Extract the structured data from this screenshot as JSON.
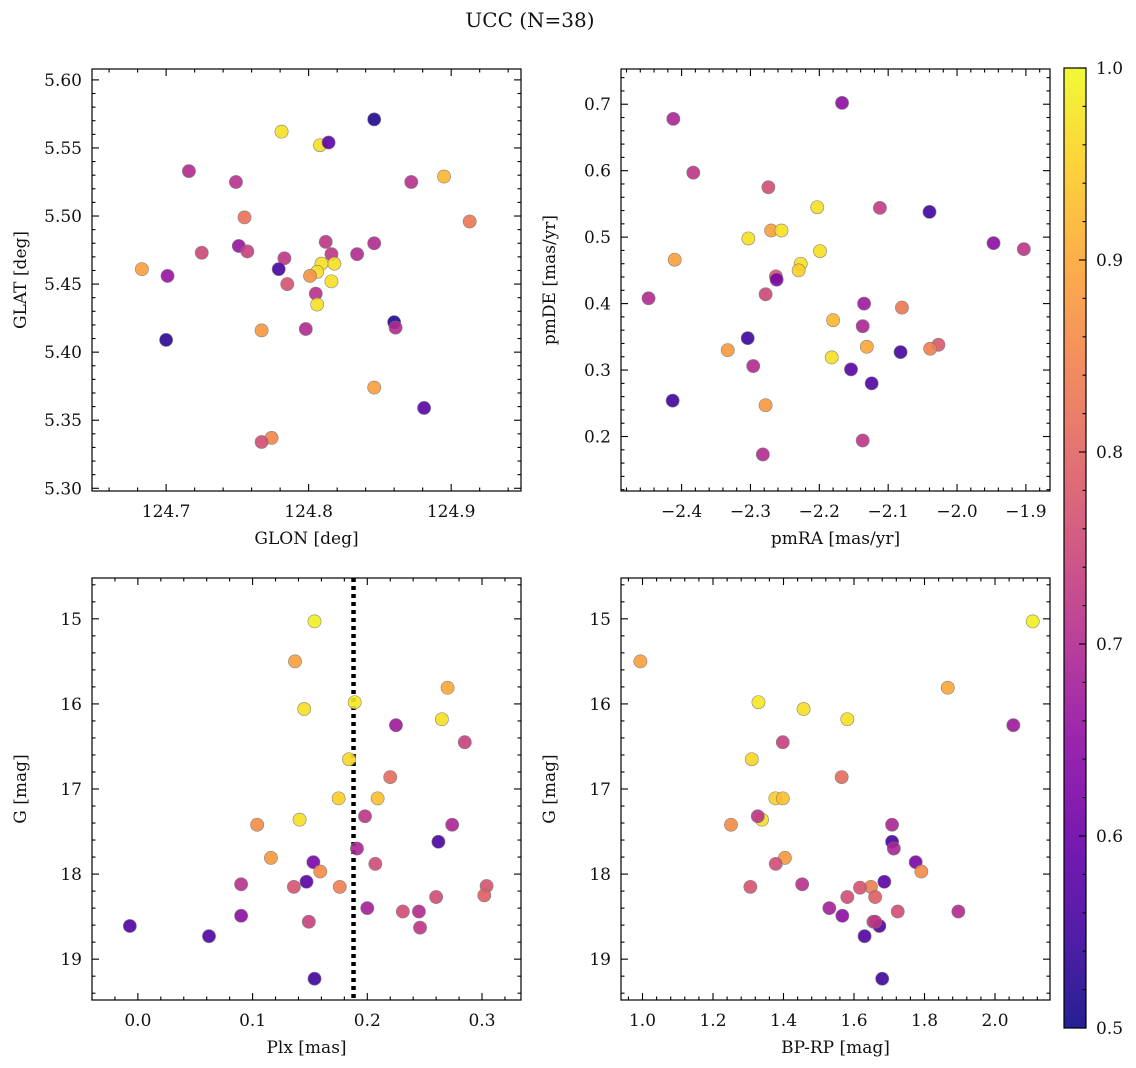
{
  "figure": {
    "title": "UCC (N=38)"
  },
  "colorbar": {
    "range": [
      0.5,
      1.0
    ],
    "tick_values": [
      0.5,
      0.6,
      0.7,
      0.8,
      0.9,
      1.0
    ],
    "tick_labels": [
      "0.5",
      "0.6",
      "0.7",
      "0.8",
      "0.9",
      "1.0"
    ],
    "colormap": "plasma"
  },
  "chart_data": [
    {
      "type": "scatter",
      "xlabel": "GLON [deg]",
      "ylabel": "GLAT [deg]",
      "xlim": [
        124.648,
        124.949
      ],
      "ylim": [
        5.298,
        5.608
      ],
      "x_ticks": [
        124.7,
        124.8,
        124.9
      ],
      "x_tick_labels": [
        "124.7",
        "124.8",
        "124.9"
      ],
      "y_ticks": [
        5.3,
        5.35,
        5.4,
        5.45,
        5.5,
        5.55,
        5.6
      ],
      "y_tick_labels": [
        "5.30",
        "5.35",
        "5.40",
        "5.45",
        "5.50",
        "5.55",
        "5.60"
      ],
      "y_inverted": false,
      "points": [
        {
          "x": 124.781,
          "y": 5.562,
          "c": 0.97
        },
        {
          "x": 124.846,
          "y": 5.571,
          "c": 0.52
        },
        {
          "x": 124.808,
          "y": 5.552,
          "c": 0.97
        },
        {
          "x": 124.814,
          "y": 5.554,
          "c": 0.58
        },
        {
          "x": 124.716,
          "y": 5.533,
          "c": 0.7
        },
        {
          "x": 124.749,
          "y": 5.525,
          "c": 0.71
        },
        {
          "x": 124.872,
          "y": 5.525,
          "c": 0.71
        },
        {
          "x": 124.895,
          "y": 5.529,
          "c": 0.92
        },
        {
          "x": 124.755,
          "y": 5.499,
          "c": 0.82
        },
        {
          "x": 124.913,
          "y": 5.496,
          "c": 0.83
        },
        {
          "x": 124.751,
          "y": 5.478,
          "c": 0.66
        },
        {
          "x": 124.757,
          "y": 5.474,
          "c": 0.74
        },
        {
          "x": 124.725,
          "y": 5.473,
          "c": 0.75
        },
        {
          "x": 124.783,
          "y": 5.469,
          "c": 0.72
        },
        {
          "x": 124.812,
          "y": 5.481,
          "c": 0.72
        },
        {
          "x": 124.816,
          "y": 5.472,
          "c": 0.72
        },
        {
          "x": 124.834,
          "y": 5.472,
          "c": 0.7
        },
        {
          "x": 124.846,
          "y": 5.48,
          "c": 0.7
        },
        {
          "x": 124.818,
          "y": 5.465,
          "c": 0.97
        },
        {
          "x": 124.809,
          "y": 5.465,
          "c": 0.97
        },
        {
          "x": 124.806,
          "y": 5.459,
          "c": 0.97
        },
        {
          "x": 124.801,
          "y": 5.456,
          "c": 0.87
        },
        {
          "x": 124.816,
          "y": 5.452,
          "c": 0.97
        },
        {
          "x": 124.683,
          "y": 5.461,
          "c": 0.89
        },
        {
          "x": 124.701,
          "y": 5.456,
          "c": 0.66
        },
        {
          "x": 124.779,
          "y": 5.461,
          "c": 0.56
        },
        {
          "x": 124.785,
          "y": 5.45,
          "c": 0.77
        },
        {
          "x": 124.805,
          "y": 5.443,
          "c": 0.71
        },
        {
          "x": 124.806,
          "y": 5.435,
          "c": 0.97
        },
        {
          "x": 124.86,
          "y": 5.422,
          "c": 0.52
        },
        {
          "x": 124.861,
          "y": 5.418,
          "c": 0.7
        },
        {
          "x": 124.767,
          "y": 5.416,
          "c": 0.88
        },
        {
          "x": 124.798,
          "y": 5.417,
          "c": 0.7
        },
        {
          "x": 124.7,
          "y": 5.409,
          "c": 0.53
        },
        {
          "x": 124.846,
          "y": 5.374,
          "c": 0.89
        },
        {
          "x": 124.881,
          "y": 5.359,
          "c": 0.58
        },
        {
          "x": 124.774,
          "y": 5.337,
          "c": 0.85
        },
        {
          "x": 124.767,
          "y": 5.334,
          "c": 0.76
        }
      ]
    },
    {
      "type": "scatter",
      "xlabel": "pmRA [mas/yr]",
      "ylabel": "pmDE [mas/yr]",
      "xlim": [
        -2.488,
        -1.865
      ],
      "ylim": [
        0.118,
        0.753
      ],
      "x_ticks": [
        -2.4,
        -2.3,
        -2.2,
        -2.1,
        -2.0,
        -1.9
      ],
      "x_tick_labels": [
        "−2.4",
        "−2.3",
        "−2.2",
        "−2.1",
        "−2.0",
        "−1.9"
      ],
      "y_ticks": [
        0.2,
        0.3,
        0.4,
        0.5,
        0.6,
        0.7
      ],
      "y_tick_labels": [
        "0.2",
        "0.3",
        "0.4",
        "0.5",
        "0.6",
        "0.7"
      ],
      "y_inverted": false,
      "points": [
        {
          "x": -2.167,
          "y": 0.702,
          "c": 0.65
        },
        {
          "x": -2.412,
          "y": 0.678,
          "c": 0.69
        },
        {
          "x": -2.383,
          "y": 0.597,
          "c": 0.72
        },
        {
          "x": -2.274,
          "y": 0.575,
          "c": 0.76
        },
        {
          "x": -2.203,
          "y": 0.545,
          "c": 0.97
        },
        {
          "x": -2.112,
          "y": 0.544,
          "c": 0.73
        },
        {
          "x": -2.04,
          "y": 0.538,
          "c": 0.55
        },
        {
          "x": -2.303,
          "y": 0.498,
          "c": 0.97
        },
        {
          "x": -2.27,
          "y": 0.51,
          "c": 0.89
        },
        {
          "x": -2.255,
          "y": 0.51,
          "c": 0.97
        },
        {
          "x": -2.227,
          "y": 0.46,
          "c": 0.97
        },
        {
          "x": -2.199,
          "y": 0.479,
          "c": 0.97
        },
        {
          "x": -2.23,
          "y": 0.45,
          "c": 0.95
        },
        {
          "x": -2.41,
          "y": 0.466,
          "c": 0.89
        },
        {
          "x": -1.947,
          "y": 0.491,
          "c": 0.65
        },
        {
          "x": -1.903,
          "y": 0.482,
          "c": 0.72
        },
        {
          "x": -2.263,
          "y": 0.441,
          "c": 0.77
        },
        {
          "x": -2.262,
          "y": 0.436,
          "c": 0.62
        },
        {
          "x": -2.448,
          "y": 0.408,
          "c": 0.7
        },
        {
          "x": -2.278,
          "y": 0.414,
          "c": 0.75
        },
        {
          "x": -2.135,
          "y": 0.4,
          "c": 0.67
        },
        {
          "x": -2.08,
          "y": 0.394,
          "c": 0.83
        },
        {
          "x": -2.18,
          "y": 0.375,
          "c": 0.92
        },
        {
          "x": -2.137,
          "y": 0.366,
          "c": 0.69
        },
        {
          "x": -2.304,
          "y": 0.348,
          "c": 0.55
        },
        {
          "x": -2.027,
          "y": 0.338,
          "c": 0.78
        },
        {
          "x": -2.039,
          "y": 0.332,
          "c": 0.84
        },
        {
          "x": -2.333,
          "y": 0.33,
          "c": 0.88
        },
        {
          "x": -2.131,
          "y": 0.335,
          "c": 0.9
        },
        {
          "x": -2.082,
          "y": 0.327,
          "c": 0.56
        },
        {
          "x": -2.182,
          "y": 0.319,
          "c": 0.97
        },
        {
          "x": -2.296,
          "y": 0.306,
          "c": 0.7
        },
        {
          "x": -2.154,
          "y": 0.301,
          "c": 0.58
        },
        {
          "x": -2.124,
          "y": 0.28,
          "c": 0.57
        },
        {
          "x": -2.413,
          "y": 0.254,
          "c": 0.55
        },
        {
          "x": -2.278,
          "y": 0.247,
          "c": 0.88
        },
        {
          "x": -2.137,
          "y": 0.194,
          "c": 0.72
        },
        {
          "x": -2.282,
          "y": 0.173,
          "c": 0.7
        }
      ]
    },
    {
      "type": "scatter",
      "xlabel": "Plx [mas]",
      "ylabel": "G [mag]",
      "xlim": [
        -0.04,
        0.334
      ],
      "ylim": [
        14.52,
        19.48
      ],
      "x_ticks": [
        0.0,
        0.1,
        0.2,
        0.3
      ],
      "x_tick_labels": [
        "0.0",
        "0.1",
        "0.2",
        "0.3"
      ],
      "y_ticks": [
        15,
        16,
        17,
        18,
        19
      ],
      "y_tick_labels": [
        "15",
        "16",
        "17",
        "18",
        "19"
      ],
      "y_inverted": true,
      "vline": {
        "x": 0.188,
        "style": "dotted"
      },
      "points": [
        {
          "x": 0.154,
          "y": 15.03,
          "c": 0.99
        },
        {
          "x": 0.137,
          "y": 15.5,
          "c": 0.89
        },
        {
          "x": 0.27,
          "y": 15.81,
          "c": 0.9
        },
        {
          "x": 0.189,
          "y": 15.98,
          "c": 0.98
        },
        {
          "x": 0.145,
          "y": 16.06,
          "c": 0.97
        },
        {
          "x": 0.265,
          "y": 16.18,
          "c": 0.97
        },
        {
          "x": 0.225,
          "y": 16.25,
          "c": 0.67
        },
        {
          "x": 0.285,
          "y": 16.45,
          "c": 0.74
        },
        {
          "x": 0.184,
          "y": 16.65,
          "c": 0.96
        },
        {
          "x": 0.22,
          "y": 16.86,
          "c": 0.81
        },
        {
          "x": 0.175,
          "y": 17.11,
          "c": 0.95
        },
        {
          "x": 0.209,
          "y": 17.11,
          "c": 0.93
        },
        {
          "x": 0.141,
          "y": 17.36,
          "c": 0.97
        },
        {
          "x": 0.104,
          "y": 17.42,
          "c": 0.86
        },
        {
          "x": 0.274,
          "y": 17.42,
          "c": 0.69
        },
        {
          "x": 0.198,
          "y": 17.32,
          "c": 0.72
        },
        {
          "x": 0.262,
          "y": 17.62,
          "c": 0.56
        },
        {
          "x": 0.191,
          "y": 17.7,
          "c": 0.69
        },
        {
          "x": 0.116,
          "y": 17.81,
          "c": 0.88
        },
        {
          "x": 0.153,
          "y": 17.86,
          "c": 0.62
        },
        {
          "x": 0.207,
          "y": 17.88,
          "c": 0.76
        },
        {
          "x": 0.159,
          "y": 17.97,
          "c": 0.86
        },
        {
          "x": 0.147,
          "y": 18.09,
          "c": 0.58
        },
        {
          "x": 0.09,
          "y": 18.12,
          "c": 0.71
        },
        {
          "x": 0.136,
          "y": 18.15,
          "c": 0.77
        },
        {
          "x": 0.176,
          "y": 18.15,
          "c": 0.84
        },
        {
          "x": 0.304,
          "y": 18.14,
          "c": 0.77
        },
        {
          "x": 0.302,
          "y": 18.25,
          "c": 0.79
        },
        {
          "x": 0.26,
          "y": 18.27,
          "c": 0.76
        },
        {
          "x": 0.2,
          "y": 18.4,
          "c": 0.68
        },
        {
          "x": 0.231,
          "y": 18.44,
          "c": 0.76
        },
        {
          "x": 0.245,
          "y": 18.44,
          "c": 0.7
        },
        {
          "x": 0.09,
          "y": 18.49,
          "c": 0.65
        },
        {
          "x": 0.149,
          "y": 18.56,
          "c": 0.74
        },
        {
          "x": 0.246,
          "y": 18.63,
          "c": 0.72
        },
        {
          "x": -0.007,
          "y": 18.61,
          "c": 0.57
        },
        {
          "x": 0.062,
          "y": 18.73,
          "c": 0.57
        },
        {
          "x": 0.154,
          "y": 19.23,
          "c": 0.55
        }
      ]
    },
    {
      "type": "scatter",
      "xlabel": "BP-RP [mag]",
      "ylabel": "G [mag]",
      "xlim": [
        0.939,
        2.156
      ],
      "ylim": [
        14.52,
        19.48
      ],
      "x_ticks": [
        1.0,
        1.2,
        1.4,
        1.6,
        1.8,
        2.0
      ],
      "x_tick_labels": [
        "1.0",
        "1.2",
        "1.4",
        "1.6",
        "1.8",
        "2.0"
      ],
      "y_ticks": [
        15,
        16,
        17,
        18,
        19
      ],
      "y_tick_labels": [
        "15",
        "16",
        "17",
        "18",
        "19"
      ],
      "y_inverted": true,
      "points": [
        {
          "x": 2.107,
          "y": 15.03,
          "c": 0.99
        },
        {
          "x": 0.994,
          "y": 15.5,
          "c": 0.89
        },
        {
          "x": 1.866,
          "y": 15.81,
          "c": 0.9
        },
        {
          "x": 1.329,
          "y": 15.98,
          "c": 0.98
        },
        {
          "x": 1.457,
          "y": 16.06,
          "c": 0.97
        },
        {
          "x": 1.581,
          "y": 16.18,
          "c": 0.97
        },
        {
          "x": 2.052,
          "y": 16.25,
          "c": 0.67
        },
        {
          "x": 1.398,
          "y": 16.45,
          "c": 0.74
        },
        {
          "x": 1.31,
          "y": 16.65,
          "c": 0.96
        },
        {
          "x": 1.565,
          "y": 16.86,
          "c": 0.81
        },
        {
          "x": 1.377,
          "y": 17.11,
          "c": 0.95
        },
        {
          "x": 1.398,
          "y": 17.11,
          "c": 0.93
        },
        {
          "x": 1.339,
          "y": 17.36,
          "c": 0.97
        },
        {
          "x": 1.251,
          "y": 17.42,
          "c": 0.86
        },
        {
          "x": 1.708,
          "y": 17.42,
          "c": 0.69
        },
        {
          "x": 1.327,
          "y": 17.32,
          "c": 0.72
        },
        {
          "x": 1.708,
          "y": 17.62,
          "c": 0.56
        },
        {
          "x": 1.713,
          "y": 17.7,
          "c": 0.69
        },
        {
          "x": 1.404,
          "y": 17.81,
          "c": 0.88
        },
        {
          "x": 1.775,
          "y": 17.86,
          "c": 0.62
        },
        {
          "x": 1.378,
          "y": 17.88,
          "c": 0.76
        },
        {
          "x": 1.791,
          "y": 17.97,
          "c": 0.86
        },
        {
          "x": 1.686,
          "y": 18.09,
          "c": 0.58
        },
        {
          "x": 1.453,
          "y": 18.12,
          "c": 0.71
        },
        {
          "x": 1.306,
          "y": 18.15,
          "c": 0.77
        },
        {
          "x": 1.648,
          "y": 18.15,
          "c": 0.84
        },
        {
          "x": 1.617,
          "y": 18.16,
          "c": 0.77
        },
        {
          "x": 1.66,
          "y": 18.27,
          "c": 0.79
        },
        {
          "x": 1.581,
          "y": 18.27,
          "c": 0.76
        },
        {
          "x": 1.53,
          "y": 18.4,
          "c": 0.68
        },
        {
          "x": 1.724,
          "y": 18.44,
          "c": 0.76
        },
        {
          "x": 1.896,
          "y": 18.44,
          "c": 0.7
        },
        {
          "x": 1.567,
          "y": 18.49,
          "c": 0.65
        },
        {
          "x": 1.655,
          "y": 18.56,
          "c": 0.74
        },
        {
          "x": 1.672,
          "y": 18.61,
          "c": 0.57
        },
        {
          "x": 1.63,
          "y": 18.73,
          "c": 0.57
        },
        {
          "x": 1.68,
          "y": 19.23,
          "c": 0.55
        },
        {
          "x": 1.66,
          "y": 18.56,
          "c": 0.72
        }
      ]
    }
  ]
}
